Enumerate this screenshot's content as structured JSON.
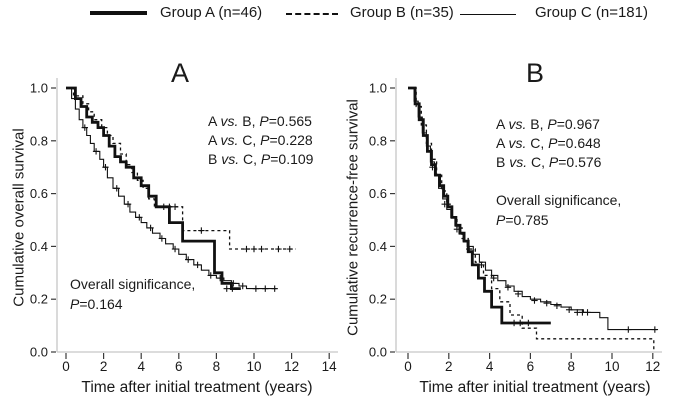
{
  "figure": {
    "legend": {
      "items": [
        {
          "label": "Group A (n=46)",
          "style": "thick-solid"
        },
        {
          "label": "Group B (n=35)",
          "style": "dashed"
        },
        {
          "label": "Group C (n=181)",
          "style": "thin-solid"
        }
      ]
    },
    "colors": {
      "curve": "#111111",
      "axis_line": "#c6c6c6",
      "tick": "#3a3a3a",
      "text": "#1a1a1a"
    }
  },
  "chart_data": [
    {
      "type": "line",
      "subtype": "kaplan-meier-step",
      "panel_label": "A",
      "title": "",
      "xlabel": "Time after initial treatment (years)",
      "ylabel": "Cumulative overall survival",
      "xlim": [
        0,
        14.5
      ],
      "ylim": [
        0,
        1.0
      ],
      "xticks": [
        "0",
        "2",
        "4",
        "6",
        "8",
        "10",
        "12",
        "14"
      ],
      "yticks": [
        "1.0",
        "0.8",
        "0.6",
        "0.4",
        "0.2",
        "0.0"
      ],
      "grid": false,
      "annotations": [
        "A vs. B, P=0.565",
        "A vs. C, P=0.228",
        "B vs. C, P=0.109"
      ],
      "overall_significance": [
        "Overall significance,",
        "P=0.164"
      ],
      "series": [
        {
          "name": "Group A (n=46)",
          "style": "thick-solid",
          "steps": [
            [
              0,
              1.0
            ],
            [
              0.5,
              0.96
            ],
            [
              0.8,
              0.93
            ],
            [
              1.1,
              0.89
            ],
            [
              1.4,
              0.87
            ],
            [
              1.7,
              0.85
            ],
            [
              2.0,
              0.82
            ],
            [
              2.3,
              0.78
            ],
            [
              2.6,
              0.74
            ],
            [
              2.9,
              0.72
            ],
            [
              3.2,
              0.7
            ],
            [
              3.6,
              0.66
            ],
            [
              4.0,
              0.63
            ],
            [
              4.4,
              0.59
            ],
            [
              4.8,
              0.55
            ],
            [
              5.5,
              0.49
            ],
            [
              6.2,
              0.42
            ],
            [
              7.9,
              0.3
            ],
            [
              8.3,
              0.26
            ],
            [
              8.8,
              0.24
            ],
            [
              9.3,
              0.24
            ]
          ],
          "censors": [
            [
              8.55,
              0.24
            ],
            [
              8.85,
              0.24
            ]
          ]
        },
        {
          "name": "Group B (n=35)",
          "style": "dashed",
          "steps": [
            [
              0,
              1.0
            ],
            [
              0.4,
              0.97
            ],
            [
              0.9,
              0.94
            ],
            [
              1.2,
              0.91
            ],
            [
              1.5,
              0.88
            ],
            [
              1.9,
              0.85
            ],
            [
              2.2,
              0.82
            ],
            [
              2.5,
              0.79
            ],
            [
              2.9,
              0.75
            ],
            [
              3.2,
              0.71
            ],
            [
              3.5,
              0.68
            ],
            [
              3.8,
              0.65
            ],
            [
              4.1,
              0.62
            ],
            [
              4.4,
              0.58
            ],
            [
              4.7,
              0.55
            ],
            [
              6.2,
              0.46
            ],
            [
              8.7,
              0.39
            ],
            [
              12.2,
              0.39
            ]
          ],
          "censors": [
            [
              5.2,
              0.55
            ],
            [
              5.5,
              0.55
            ],
            [
              5.8,
              0.55
            ],
            [
              7.2,
              0.46
            ],
            [
              9.6,
              0.39
            ],
            [
              10.0,
              0.39
            ],
            [
              10.4,
              0.39
            ],
            [
              11.3,
              0.39
            ],
            [
              11.9,
              0.39
            ]
          ]
        },
        {
          "name": "Group C (n=181)",
          "style": "thin-solid",
          "steps": [
            [
              0,
              1.0
            ],
            [
              0.3,
              0.96
            ],
            [
              0.5,
              0.92
            ],
            [
              0.7,
              0.88
            ],
            [
              0.9,
              0.85
            ],
            [
              1.1,
              0.82
            ],
            [
              1.3,
              0.79
            ],
            [
              1.5,
              0.76
            ],
            [
              1.8,
              0.73
            ],
            [
              2.0,
              0.7
            ],
            [
              2.2,
              0.66
            ],
            [
              2.5,
              0.62
            ],
            [
              2.8,
              0.59
            ],
            [
              3.1,
              0.56
            ],
            [
              3.4,
              0.53
            ],
            [
              3.7,
              0.51
            ],
            [
              4.0,
              0.49
            ],
            [
              4.3,
              0.47
            ],
            [
              4.6,
              0.45
            ],
            [
              5.0,
              0.43
            ],
            [
              5.3,
              0.41
            ],
            [
              5.7,
              0.39
            ],
            [
              6.0,
              0.37
            ],
            [
              6.4,
              0.35
            ],
            [
              6.8,
              0.33
            ],
            [
              7.2,
              0.31
            ],
            [
              7.6,
              0.29
            ],
            [
              8.0,
              0.28
            ],
            [
              8.4,
              0.27
            ],
            [
              8.8,
              0.26
            ],
            [
              9.2,
              0.25
            ],
            [
              9.6,
              0.24
            ],
            [
              11.2,
              0.24
            ]
          ],
          "censors": [
            [
              1.0,
              0.85
            ],
            [
              1.6,
              0.76
            ],
            [
              2.1,
              0.7
            ],
            [
              2.7,
              0.62
            ],
            [
              3.3,
              0.56
            ],
            [
              3.9,
              0.51
            ],
            [
              4.5,
              0.47
            ],
            [
              5.1,
              0.43
            ],
            [
              5.8,
              0.39
            ],
            [
              6.5,
              0.35
            ],
            [
              7.0,
              0.33
            ],
            [
              7.7,
              0.29
            ],
            [
              8.2,
              0.28
            ],
            [
              8.9,
              0.26
            ],
            [
              9.4,
              0.25
            ],
            [
              10.1,
              0.24
            ],
            [
              10.6,
              0.24
            ],
            [
              11.1,
              0.24
            ]
          ]
        }
      ]
    },
    {
      "type": "line",
      "subtype": "kaplan-meier-step",
      "panel_label": "B",
      "title": "",
      "xlabel": "Time after initial treatment (years)",
      "ylabel": "Cumulative recurrence-free survival",
      "xlim": [
        0,
        12.5
      ],
      "ylim": [
        0,
        1.0
      ],
      "xticks": [
        "0",
        "2",
        "4",
        "6",
        "8",
        "10",
        "12"
      ],
      "yticks": [
        "1.0",
        "0.8",
        "0.6",
        "0.4",
        "0.2",
        "0.0"
      ],
      "grid": false,
      "annotations": [
        "A vs. B, P=0.967",
        "A vs. C, P=0.648",
        "B vs. C, P=0.576"
      ],
      "overall_significance": [
        "Overall significance,",
        "P=0.785"
      ],
      "series": [
        {
          "name": "Group A (n=46)",
          "style": "thick-solid",
          "steps": [
            [
              0,
              1.0
            ],
            [
              0.35,
              0.94
            ],
            [
              0.55,
              0.88
            ],
            [
              0.75,
              0.82
            ],
            [
              0.95,
              0.76
            ],
            [
              1.15,
              0.71
            ],
            [
              1.35,
              0.67
            ],
            [
              1.55,
              0.63
            ],
            [
              1.75,
              0.59
            ],
            [
              1.95,
              0.55
            ],
            [
              2.15,
              0.51
            ],
            [
              2.35,
              0.48
            ],
            [
              2.55,
              0.45
            ],
            [
              2.75,
              0.42
            ],
            [
              2.95,
              0.38
            ],
            [
              3.15,
              0.33
            ],
            [
              3.45,
              0.28
            ],
            [
              3.75,
              0.23
            ],
            [
              4.1,
              0.17
            ],
            [
              4.6,
              0.11
            ],
            [
              7.0,
              0.11
            ]
          ],
          "censors": [
            [
              5.2,
              0.11
            ],
            [
              5.5,
              0.11
            ],
            [
              5.9,
              0.11
            ]
          ]
        },
        {
          "name": "Group B (n=35)",
          "style": "dashed",
          "steps": [
            [
              0,
              1.0
            ],
            [
              0.4,
              0.93
            ],
            [
              0.65,
              0.86
            ],
            [
              0.9,
              0.79
            ],
            [
              1.15,
              0.73
            ],
            [
              1.4,
              0.67
            ],
            [
              1.65,
              0.61
            ],
            [
              1.9,
              0.56
            ],
            [
              2.15,
              0.51
            ],
            [
              2.4,
              0.47
            ],
            [
              2.65,
              0.43
            ],
            [
              2.95,
              0.39
            ],
            [
              3.3,
              0.34
            ],
            [
              3.7,
              0.29
            ],
            [
              4.1,
              0.24
            ],
            [
              4.5,
              0.19
            ],
            [
              5.0,
              0.14
            ],
            [
              5.6,
              0.09
            ],
            [
              6.3,
              0.05
            ],
            [
              11.9,
              0.05
            ],
            [
              12.05,
              0.01
            ]
          ],
          "censors": []
        },
        {
          "name": "Group C (n=181)",
          "style": "thin-solid",
          "steps": [
            [
              0,
              1.0
            ],
            [
              0.3,
              0.95
            ],
            [
              0.5,
              0.89
            ],
            [
              0.7,
              0.83
            ],
            [
              0.9,
              0.78
            ],
            [
              1.1,
              0.72
            ],
            [
              1.3,
              0.67
            ],
            [
              1.5,
              0.62
            ],
            [
              1.7,
              0.58
            ],
            [
              1.9,
              0.54
            ],
            [
              2.1,
              0.51
            ],
            [
              2.3,
              0.48
            ],
            [
              2.5,
              0.45
            ],
            [
              2.7,
              0.42
            ],
            [
              2.9,
              0.4
            ],
            [
              3.2,
              0.37
            ],
            [
              3.5,
              0.34
            ],
            [
              3.8,
              0.31
            ],
            [
              4.1,
              0.29
            ],
            [
              4.4,
              0.27
            ],
            [
              4.8,
              0.25
            ],
            [
              5.2,
              0.23
            ],
            [
              5.6,
              0.21
            ],
            [
              6.0,
              0.2
            ],
            [
              6.5,
              0.19
            ],
            [
              7.0,
              0.18
            ],
            [
              7.5,
              0.17
            ],
            [
              8.0,
              0.16
            ],
            [
              8.6,
              0.15
            ],
            [
              9.4,
              0.13
            ],
            [
              9.8,
              0.085
            ],
            [
              12.2,
              0.085
            ]
          ],
          "censors": [
            [
              1.2,
              0.7
            ],
            [
              1.8,
              0.56
            ],
            [
              2.4,
              0.465
            ],
            [
              3.0,
              0.39
            ],
            [
              3.6,
              0.33
            ],
            [
              4.2,
              0.28
            ],
            [
              4.9,
              0.245
            ],
            [
              5.4,
              0.22
            ],
            [
              6.2,
              0.195
            ],
            [
              6.8,
              0.185
            ],
            [
              7.3,
              0.175
            ],
            [
              7.9,
              0.16
            ],
            [
              8.3,
              0.15
            ],
            [
              8.55,
              0.15
            ],
            [
              8.8,
              0.15
            ],
            [
              10.8,
              0.085
            ],
            [
              12.1,
              0.085
            ]
          ]
        }
      ]
    }
  ]
}
